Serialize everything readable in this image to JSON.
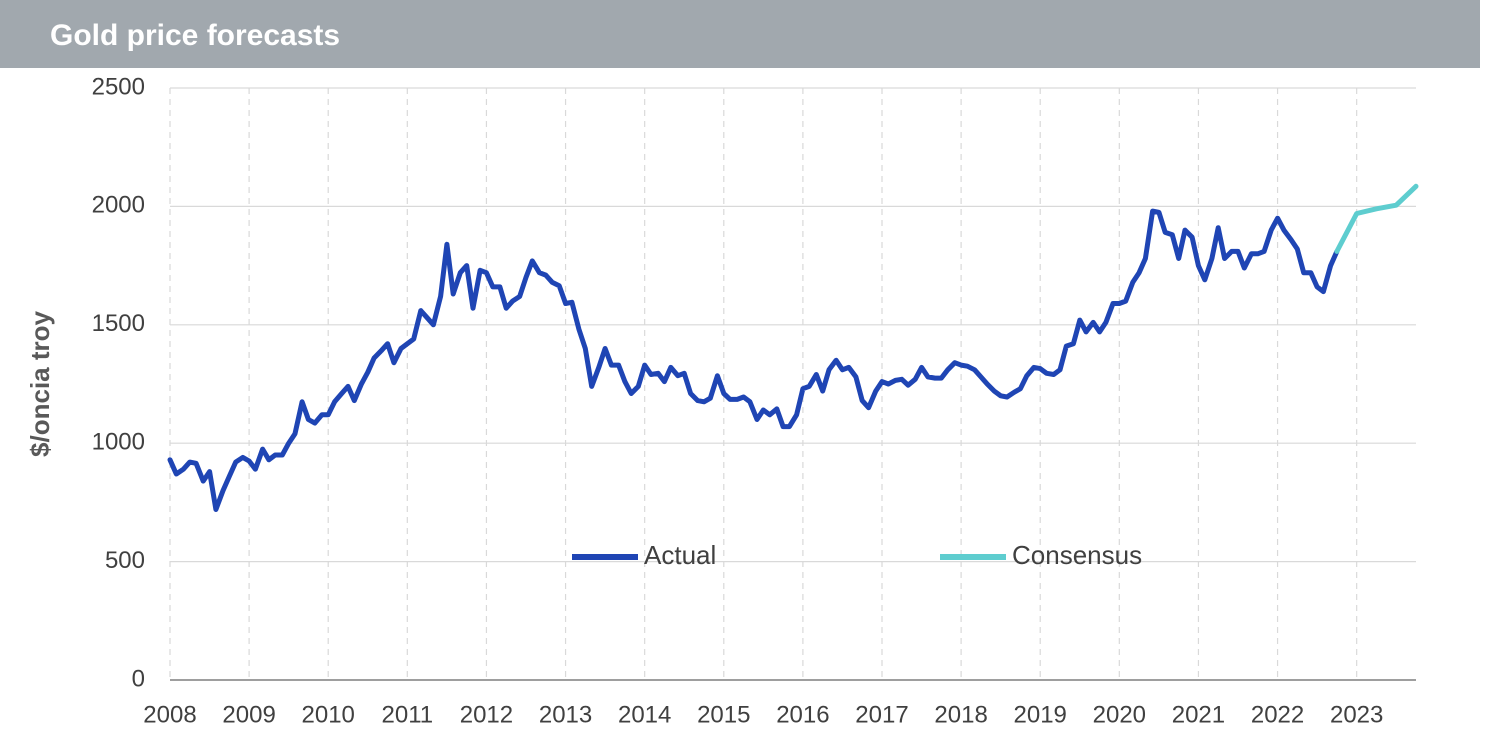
{
  "chart_data": {
    "type": "line",
    "title": "Gold price forecasts",
    "ylabel": "$/oncia troy",
    "xlim": [
      2008,
      2023.75
    ],
    "xticks": [
      2008,
      2009,
      2010,
      2011,
      2012,
      2013,
      2014,
      2015,
      2016,
      2017,
      2018,
      2019,
      2020,
      2021,
      2022,
      2023
    ],
    "ylim": [
      0,
      2500
    ],
    "yticks": [
      0,
      500,
      1000,
      1500,
      2000,
      2500
    ],
    "grid": true,
    "legend": "center",
    "series": [
      {
        "name": "Actual",
        "color": "#1f45b4",
        "x": [
          2008,
          2008.08,
          2008.17,
          2008.25,
          2008.33,
          2008.42,
          2008.5,
          2008.58,
          2008.67,
          2008.75,
          2008.83,
          2008.92,
          2009,
          2009.08,
          2009.17,
          2009.25,
          2009.33,
          2009.42,
          2009.5,
          2009.58,
          2009.67,
          2009.75,
          2009.83,
          2009.92,
          2010,
          2010.08,
          2010.17,
          2010.25,
          2010.33,
          2010.42,
          2010.5,
          2010.58,
          2010.67,
          2010.75,
          2010.83,
          2010.92,
          2011,
          2011.08,
          2011.17,
          2011.25,
          2011.33,
          2011.42,
          2011.5,
          2011.58,
          2011.67,
          2011.75,
          2011.83,
          2011.92,
          2012,
          2012.08,
          2012.17,
          2012.25,
          2012.33,
          2012.42,
          2012.5,
          2012.58,
          2012.67,
          2012.75,
          2012.83,
          2012.92,
          2013,
          2013.08,
          2013.17,
          2013.25,
          2013.33,
          2013.42,
          2013.5,
          2013.58,
          2013.67,
          2013.75,
          2013.83,
          2013.92,
          2014,
          2014.08,
          2014.17,
          2014.25,
          2014.33,
          2014.42,
          2014.5,
          2014.58,
          2014.67,
          2014.75,
          2014.83,
          2014.92,
          2015,
          2015.08,
          2015.17,
          2015.25,
          2015.33,
          2015.42,
          2015.5,
          2015.58,
          2015.67,
          2015.75,
          2015.83,
          2015.92,
          2016,
          2016.08,
          2016.17,
          2016.25,
          2016.33,
          2016.42,
          2016.5,
          2016.58,
          2016.67,
          2016.75,
          2016.83,
          2016.92,
          2017,
          2017.08,
          2017.17,
          2017.25,
          2017.33,
          2017.42,
          2017.5,
          2017.58,
          2017.67,
          2017.75,
          2017.83,
          2017.92,
          2018,
          2018.08,
          2018.17,
          2018.25,
          2018.33,
          2018.42,
          2018.5,
          2018.58,
          2018.67,
          2018.75,
          2018.83,
          2018.92,
          2019,
          2019.08,
          2019.17,
          2019.25,
          2019.33,
          2019.42,
          2019.5,
          2019.58,
          2019.67,
          2019.75,
          2019.83,
          2019.92,
          2020,
          2020.08,
          2020.17,
          2020.25,
          2020.33,
          2020.42,
          2020.5,
          2020.58,
          2020.67,
          2020.75,
          2020.83,
          2020.92,
          2021,
          2021.08,
          2021.17,
          2021.25,
          2021.33,
          2021.42,
          2021.5,
          2021.58,
          2021.67,
          2021.75,
          2021.83,
          2021.92,
          2022,
          2022.08,
          2022.17,
          2022.25,
          2022.33,
          2022.42,
          2022.5,
          2022.58,
          2022.67,
          2022.75
        ],
        "values": [
          930,
          870,
          890,
          920,
          915,
          840,
          880,
          720,
          800,
          860,
          920,
          940,
          925,
          890,
          975,
          930,
          950,
          950,
          1000,
          1040,
          1175,
          1100,
          1085,
          1120,
          1120,
          1175,
          1210,
          1240,
          1180,
          1250,
          1300,
          1360,
          1390,
          1420,
          1340,
          1400,
          1420,
          1440,
          1560,
          1530,
          1500,
          1620,
          1840,
          1630,
          1720,
          1750,
          1570,
          1730,
          1720,
          1660,
          1660,
          1570,
          1600,
          1620,
          1700,
          1770,
          1720,
          1710,
          1680,
          1665,
          1590,
          1595,
          1480,
          1400,
          1240,
          1320,
          1400,
          1330,
          1330,
          1260,
          1210,
          1240,
          1330,
          1290,
          1295,
          1260,
          1320,
          1285,
          1295,
          1210,
          1180,
          1175,
          1190,
          1285,
          1210,
          1185,
          1185,
          1195,
          1175,
          1100,
          1140,
          1120,
          1145,
          1070,
          1070,
          1120,
          1230,
          1240,
          1290,
          1220,
          1310,
          1350,
          1310,
          1320,
          1280,
          1180,
          1150,
          1220,
          1260,
          1250,
          1265,
          1270,
          1245,
          1270,
          1320,
          1280,
          1275,
          1275,
          1310,
          1340,
          1330,
          1325,
          1310,
          1280,
          1250,
          1220,
          1200,
          1195,
          1215,
          1230,
          1285,
          1320,
          1315,
          1295,
          1290,
          1310,
          1410,
          1420,
          1520,
          1470,
          1510,
          1470,
          1510,
          1590,
          1590,
          1600,
          1680,
          1720,
          1780,
          1980,
          1975,
          1890,
          1880,
          1780,
          1900,
          1870,
          1750,
          1690,
          1780,
          1910,
          1780,
          1810,
          1810,
          1740,
          1800,
          1800,
          1810,
          1900,
          1950,
          1900,
          1860,
          1820,
          1720,
          1720,
          1660,
          1640,
          1750,
          1810
        ]
      },
      {
        "name": "Consensus",
        "color": "#5ecdcf",
        "x": [
          2022.75,
          2023,
          2023.25,
          2023.5,
          2023.75
        ],
        "values": [
          1810,
          1970,
          1990,
          2005,
          2085
        ]
      }
    ]
  }
}
